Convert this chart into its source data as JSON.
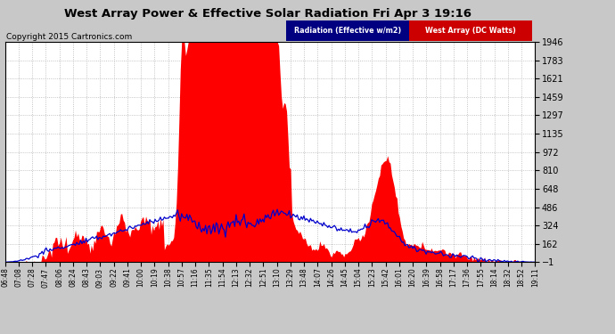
{
  "title": "West Array Power & Effective Solar Radiation Fri Apr 3 19:16",
  "copyright": "Copyright 2015 Cartronics.com",
  "legend_radiation": "Radiation (Effective w/m2)",
  "legend_west": "West Array (DC Watts)",
  "yticks": [
    -0.6,
    161.6,
    323.8,
    485.9,
    648.1,
    810.3,
    972.5,
    1134.7,
    1296.9,
    1459.0,
    1621.2,
    1783.4,
    1945.6
  ],
  "ymin": -0.6,
  "ymax": 1945.6,
  "background_color": "#c8c8c8",
  "plot_bg_color": "#ffffff",
  "title_color": "#000000",
  "red_color": "#ff0000",
  "blue_color": "#0000cc",
  "grid_color": "#aaaaaa",
  "xtick_labels": [
    "06:48",
    "07:08",
    "07:28",
    "07:47",
    "08:06",
    "08:24",
    "08:43",
    "09:03",
    "09:22",
    "09:41",
    "10:00",
    "10:19",
    "10:38",
    "10:57",
    "11:16",
    "11:35",
    "11:54",
    "12:13",
    "12:32",
    "12:51",
    "13:10",
    "13:29",
    "13:48",
    "14:07",
    "14:26",
    "14:45",
    "15:04",
    "15:23",
    "15:42",
    "16:01",
    "16:20",
    "16:39",
    "16:58",
    "17:17",
    "17:36",
    "17:55",
    "18:14",
    "18:32",
    "18:52",
    "19:11"
  ],
  "n_points": 400
}
